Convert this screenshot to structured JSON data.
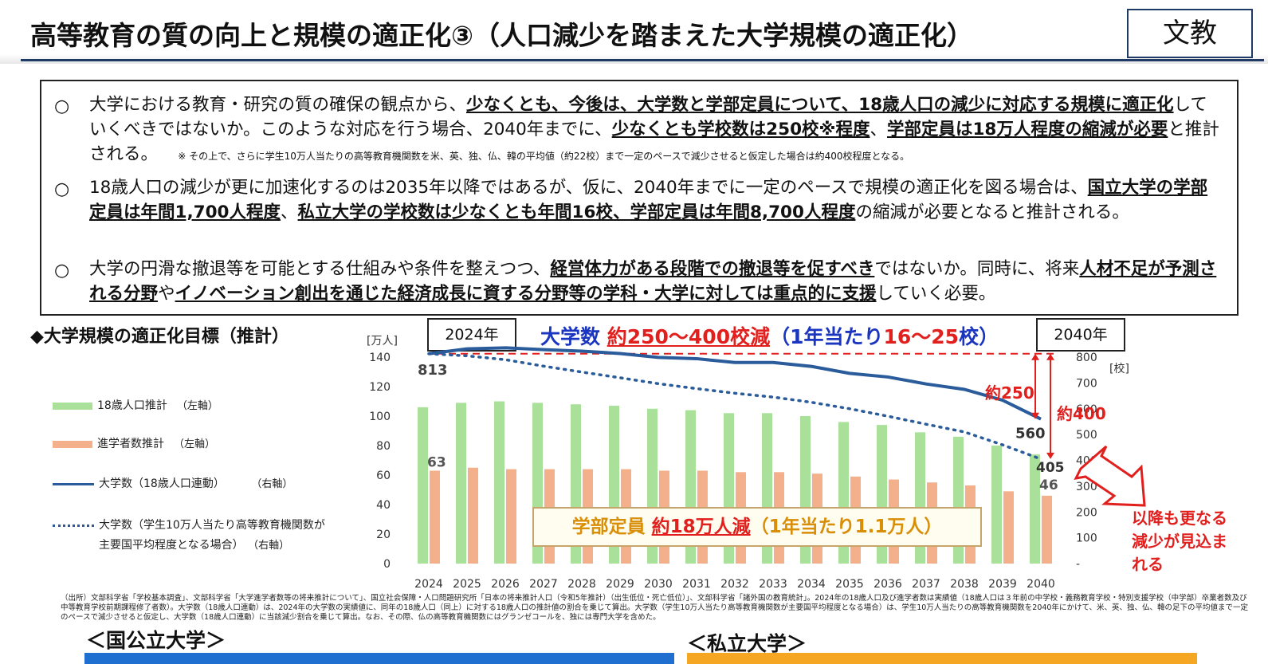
{
  "header": {
    "title": "高等教育の質の向上と規模の適正化③（人口減少を踏まえた大学規模の適正化）",
    "tag": "文教"
  },
  "bullets": [
    {
      "mark": "○",
      "parts": [
        {
          "t": "大学における教育・研究の質の確保の観点から、",
          "b": false
        },
        {
          "t": "少なくとも、今後は、大学数と学部定員について、18歳人口の減少に対応する規模に適正化",
          "b": true
        },
        {
          "t": "していくべきではないか。このような対応を行う場合、2040年までに、",
          "b": false
        },
        {
          "t": "少なくとも学校数は250校※程度",
          "b": true
        },
        {
          "t": "、",
          "b": false
        },
        {
          "t": "学部定員は18万人程度の縮減が必要",
          "b": true
        },
        {
          "t": "と推計される。",
          "b": false
        }
      ],
      "note": "※ その上で、さらに学生10万人当たりの高等教育機関数を米、英、独、仏、韓の平均値（約22校）まで一定のペースで減少させると仮定した場合は約400校程度となる。"
    },
    {
      "mark": "○",
      "parts": [
        {
          "t": "18歳人口の減少が更に加速化するのは2035年以降ではあるが、仮に、2040年までに一定のペースで規模の適正化を図る場合は、",
          "b": false
        },
        {
          "t": "国立大学の学部定員は年間1,700人程度",
          "b": true
        },
        {
          "t": "、",
          "b": false
        },
        {
          "t": "私立大学の学校数は少なくとも年間16校、学部定員は年間8,700人程度",
          "b": true
        },
        {
          "t": "の縮減が必要となると推計される。",
          "b": false
        }
      ]
    },
    {
      "mark": "○",
      "parts": [
        {
          "t": "大学の円滑な撤退等を可能とする仕組みや条件を整えつつ、",
          "b": false
        },
        {
          "t": "経営体力がある段階での撤退等を促すべき",
          "b": true
        },
        {
          "t": "ではないか。同時に、将来",
          "b": false
        },
        {
          "t": "人材不足が予測される分野",
          "b": true
        },
        {
          "t": "や",
          "b": false
        },
        {
          "t": "イノベーション創出を通じた経済成長に資する分野等の学科・大学に対しては重点的に支援",
          "b": true
        },
        {
          "t": "していく必要。",
          "b": false
        }
      ]
    }
  ],
  "chart_section": {
    "label": "◆大学規模の適正化目標（推計）",
    "year_start": "2024年",
    "year_end": "2040年",
    "headline": {
      "a": "大学数 ",
      "b": "約250～400校減",
      "c": "（1年当たり",
      "d": "16～25",
      "e": "校）"
    },
    "callout": {
      "a": "学部定員 ",
      "b": "約18万人減",
      "c": "（1年当たり1.1万人）"
    },
    "future": [
      "以降も更なる",
      "減少が見込ま",
      "れる"
    ],
    "ann_250": "約250",
    "ann_400": "約400"
  },
  "legend": [
    {
      "label": "18歳人口推計",
      "axis": "（左軸）",
      "color": "#a9e19a"
    },
    {
      "label": "進学者数推計",
      "axis": "（左軸）",
      "color": "#f4b08a"
    },
    {
      "label": "大学数（18歳人口連動）",
      "axis": "（右軸）",
      "color": "#2a5b9a"
    },
    {
      "label": "大学数（学生10万人当たり高等教育機関数が",
      "label2": "主要国平均程度となる場合）",
      "axis": "（右軸）",
      "color": "#2a5b9a"
    }
  ],
  "chart_data": {
    "type": "bar",
    "categories": [
      "2024",
      "2025",
      "2026",
      "2027",
      "2028",
      "2029",
      "2030",
      "2031",
      "2032",
      "2033",
      "2034",
      "2035",
      "2036",
      "2037",
      "2038",
      "2039",
      "2040"
    ],
    "ylabel": "[万人]",
    "ylim": [
      0,
      140
    ],
    "yticks": [
      "0",
      "20",
      "40",
      "60",
      "80",
      "100",
      "120",
      "140"
    ],
    "y2label": "[校]",
    "y2lim": [
      0,
      800
    ],
    "y2ticks": [
      "-",
      "100",
      "200",
      "300",
      "400",
      "500",
      "600",
      "700",
      "800"
    ],
    "grid": false,
    "series": [
      {
        "name": "18歳人口推計",
        "axis": "left",
        "kind": "bar",
        "color": "#a9e19a",
        "values": [
          106,
          109,
          110,
          109,
          108,
          107,
          105,
          104,
          102,
          102,
          100,
          96,
          94,
          89,
          86,
          80,
          74
        ]
      },
      {
        "name": "進学者数推計",
        "axis": "left",
        "kind": "bar",
        "color": "#f4b08a",
        "values": [
          63,
          65,
          64,
          64,
          64,
          64,
          63,
          63,
          62,
          62,
          61,
          59,
          57,
          55,
          53,
          49,
          46
        ]
      },
      {
        "name": "大学数（18歳人口連動）",
        "axis": "right",
        "kind": "line",
        "color": "#2a5b9a",
        "values": [
          813,
          832,
          836,
          829,
          823,
          814,
          799,
          794,
          779,
          779,
          764,
          737,
          723,
          696,
          675,
          633,
          560
        ]
      },
      {
        "name": "大学数（学生10万人当たり高等教育機関数が主要国平均程度となる場合）",
        "axis": "right",
        "kind": "dotted",
        "color": "#2a5b9a",
        "values": [
          813,
          805,
          790,
          765,
          742,
          720,
          697,
          678,
          660,
          645,
          625,
          600,
          571,
          540,
          510,
          460,
          405
        ]
      }
    ],
    "data_labels": {
      "line_first": "813",
      "line_last": "560",
      "dotted_last": "405",
      "bar2_first": "63",
      "bar2_last": "46"
    }
  },
  "source": "（出所）文部科学省「学校基本調査」、文部科学省「大学進学者数等の将来推計について」、国立社会保障・人口問題研究所「日本の将来推計人口（令和5年推計）（出生低位・死亡低位）」、文部科学省「諸外国の教育統計」。2024年の18歳人口及び進学者数は実績値（18歳人口は３年前の中学校・義務教育学校・特別支援学校（中学部）卒業者数及び中等教育学校前期課程修了者数）。大学数（18歳人口連動）は、2024年の大学数の実績値に、同年の18歳人口（同上）に対する18歳人口の推計値の割合を乗じて算出。大学数（学生10万人当たり高等教育機関数が主要国平均程度となる場合）は、学生10万人当たりの高等教育機関数を2040年にかけて、米、英、独、仏、韓の足下の平均値まで一定のペースで減少させると仮定し、大学数（18歳人口連動）に当該減少割合を乗じて算出。なお、その際、仏の高等教育機関数にはグランゼコールを、独には専門大学を含めた。",
  "sections": {
    "national": "＜国公立大学＞",
    "private": "＜私立大学＞",
    "national_color": "#1f6fd0",
    "private_color": "#f5a623"
  }
}
